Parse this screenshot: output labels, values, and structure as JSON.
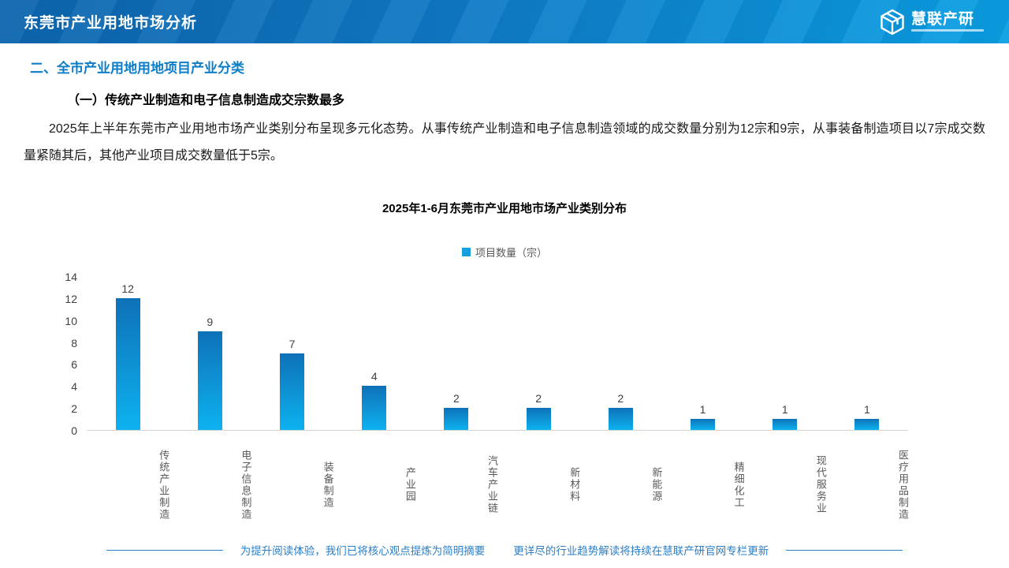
{
  "header": {
    "title": "东莞市产业用地市场分析",
    "logo_text": "慧联产研"
  },
  "section": {
    "heading": "二、全市产业用地用地项目产业分类",
    "subheading": "（一）传统产业制造和电子信息制造成交宗数最多",
    "paragraph": "2025年上半年东莞市产业用地市场产业类别分布呈现多元化态势。从事传统产业制造和电子信息制造领域的成交数量分别为12宗和9宗，从事装备制造项目以7宗成交数量紧随其后，其他产业项目成交数量低于5宗。"
  },
  "chart_data": {
    "type": "bar",
    "title": "2025年1-6月东莞市产业用地市场产业类别分布",
    "legend": [
      "项目数量（宗）"
    ],
    "legend_position": "top",
    "categories": [
      "传统产业制造",
      "电子信息制造",
      "装备制造",
      "产业园",
      "汽车产业链",
      "新材料",
      "新能源",
      "精细化工",
      "现代服务业",
      "医疗用品制造"
    ],
    "values": [
      12,
      9,
      7,
      4,
      2,
      2,
      2,
      1,
      1,
      1
    ],
    "xlabel": "",
    "ylabel": "",
    "ylim": [
      0,
      14
    ],
    "ytick_step": 2,
    "grid": false,
    "bar_color_top": "#0e71b8",
    "bar_color_bottom": "#0db2ef",
    "data_labels": true
  },
  "footer": {
    "left_note": "为提升阅读体验，我们已将核心观点提炼为简明摘要",
    "right_note": "更详尽的行业趋势解读将持续在慧联产研官网专栏更新"
  },
  "colors": {
    "header_gradient_left": "#0d65ad",
    "header_gradient_right": "#0aa0e4",
    "section_heading": "#0e7dc8",
    "legend_swatch": "#189fe0",
    "footer_text": "#2a7fc8",
    "axis_line": "#d4d4d4",
    "tick_text": "#404040",
    "category_text": "#595959"
  }
}
